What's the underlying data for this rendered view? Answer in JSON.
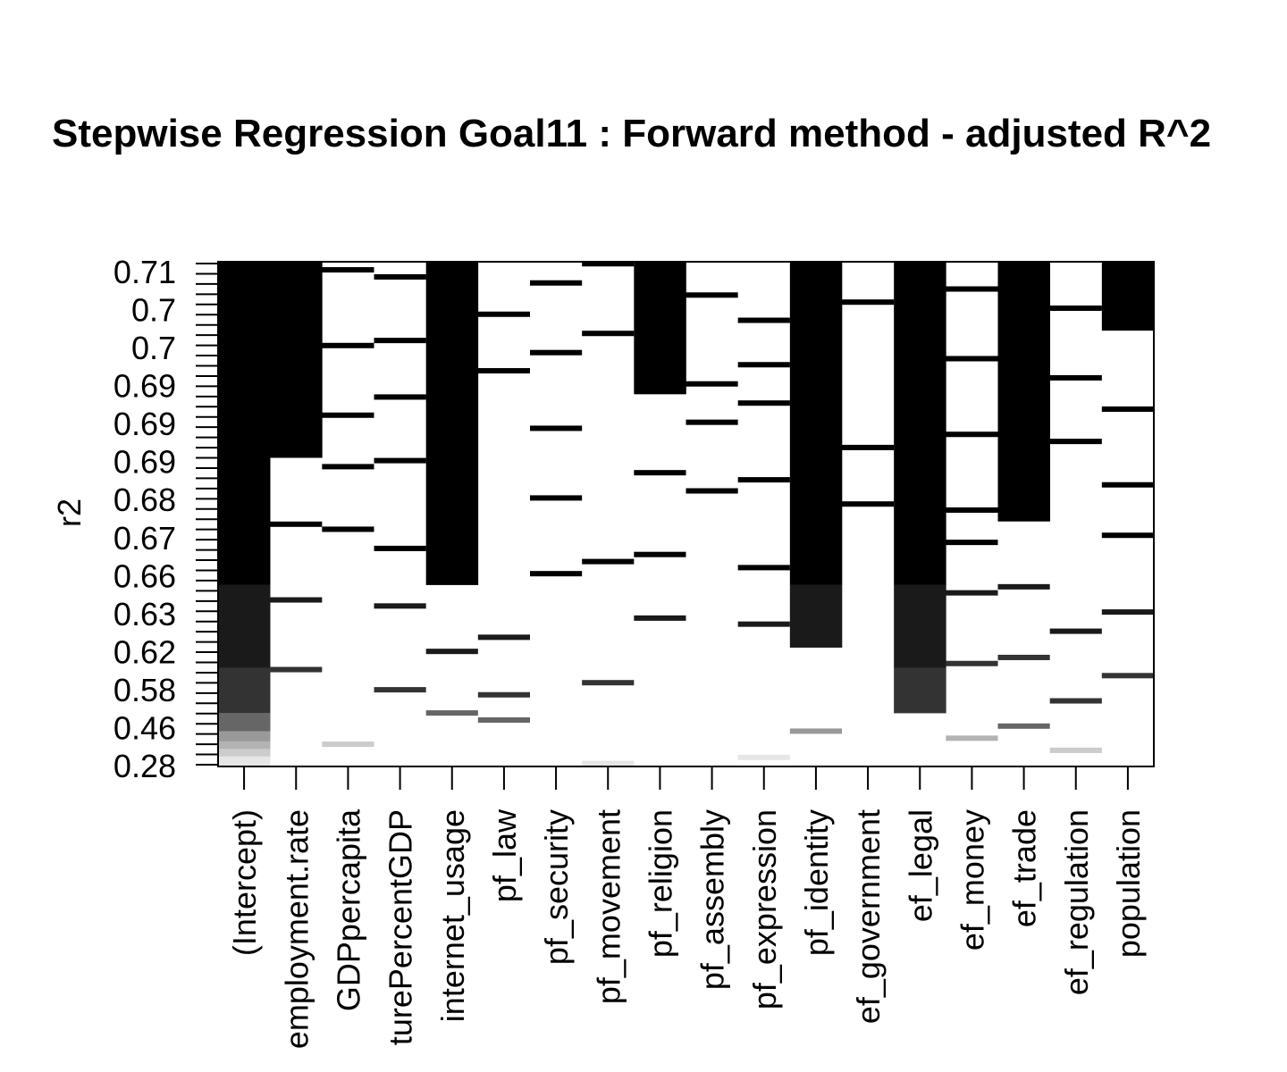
{
  "chart_data": {
    "type": "heatmap",
    "title": "Stepwise Regression Goal11 : Forward method - adjusted R^2",
    "ylabel": "r2",
    "xlabel": "",
    "y_tick_labels": [
      "0.71",
      "0.7",
      "0.7",
      "0.69",
      "0.69",
      "0.69",
      "0.68",
      "0.67",
      "0.66",
      "0.63",
      "0.62",
      "0.58",
      "0.46",
      "0.28"
    ],
    "categories": [
      "(Intercept)",
      "employment.rate",
      "GDPpercapita",
      "turePercentGDP",
      "internet_usage",
      "pf_law",
      "pf_security",
      "pf_movement",
      "pf_religion",
      "pf_assembly",
      "pf_expression",
      "pf_identity",
      "ef_government",
      "ef_legal",
      "ef_money",
      "ef_trade",
      "ef_regulation",
      "population"
    ],
    "grid": false,
    "description_of_shading": "darker cells = higher adjusted R^2 of models including the variable",
    "cells": [
      {
        "col": 0,
        "y0": 0.0,
        "y1": 0.64,
        "shade": "#000000"
      },
      {
        "col": 0,
        "y0": 0.64,
        "y1": 0.804,
        "shade": "#1a1a1a"
      },
      {
        "col": 0,
        "y0": 0.804,
        "y1": 0.894,
        "shade": "#333333"
      },
      {
        "col": 0,
        "y0": 0.894,
        "y1": 0.93,
        "shade": "#666666"
      },
      {
        "col": 0,
        "y0": 0.93,
        "y1": 0.95,
        "shade": "#999999"
      },
      {
        "col": 0,
        "y0": 0.95,
        "y1": 0.965,
        "shade": "#b3b3b3"
      },
      {
        "col": 0,
        "y0": 0.965,
        "y1": 0.98,
        "shade": "#cccccc"
      },
      {
        "col": 0,
        "y0": 0.98,
        "y1": 1.0,
        "shade": "#e6e6e6"
      },
      {
        "col": 1,
        "y0": 0.0,
        "y1": 0.388,
        "shade": "#000000"
      },
      {
        "col": 4,
        "y0": 0.0,
        "y1": 0.64,
        "shade": "#000000"
      },
      {
        "col": 8,
        "y0": 0.0,
        "y1": 0.262,
        "shade": "#000000"
      },
      {
        "col": 11,
        "y0": 0.0,
        "y1": 0.64,
        "shade": "#000000"
      },
      {
        "col": 11,
        "y0": 0.64,
        "y1": 0.764,
        "shade": "#1a1a1a"
      },
      {
        "col": 13,
        "y0": 0.0,
        "y1": 0.64,
        "shade": "#000000"
      },
      {
        "col": 13,
        "y0": 0.64,
        "y1": 0.804,
        "shade": "#1a1a1a"
      },
      {
        "col": 13,
        "y0": 0.804,
        "y1": 0.894,
        "shade": "#333333"
      },
      {
        "col": 15,
        "y0": 0.0,
        "y1": 0.514,
        "shade": "#000000"
      },
      {
        "col": 17,
        "y0": 0.0,
        "y1": 0.136,
        "shade": "#000000"
      }
    ],
    "lines": [
      {
        "col": 1,
        "y": 0.52,
        "shade": "#000000"
      },
      {
        "col": 1,
        "y": 0.67,
        "shade": "#1a1a1a"
      },
      {
        "col": 1,
        "y": 0.808,
        "shade": "#333333"
      },
      {
        "col": 2,
        "y": 0.016,
        "shade": "#000000"
      },
      {
        "col": 2,
        "y": 0.166,
        "shade": "#000000"
      },
      {
        "col": 2,
        "y": 0.304,
        "shade": "#000000"
      },
      {
        "col": 2,
        "y": 0.406,
        "shade": "#000000"
      },
      {
        "col": 2,
        "y": 0.53,
        "shade": "#000000"
      },
      {
        "col": 2,
        "y": 0.956,
        "shade": "#cccccc"
      },
      {
        "col": 3,
        "y": 0.03,
        "shade": "#000000"
      },
      {
        "col": 3,
        "y": 0.156,
        "shade": "#000000"
      },
      {
        "col": 3,
        "y": 0.268,
        "shade": "#000000"
      },
      {
        "col": 3,
        "y": 0.394,
        "shade": "#000000"
      },
      {
        "col": 3,
        "y": 0.568,
        "shade": "#000000"
      },
      {
        "col": 3,
        "y": 0.682,
        "shade": "#1a1a1a"
      },
      {
        "col": 3,
        "y": 0.848,
        "shade": "#333333"
      },
      {
        "col": 4,
        "y": 0.772,
        "shade": "#1a1a1a"
      },
      {
        "col": 4,
        "y": 0.894,
        "shade": "#666666"
      },
      {
        "col": 5,
        "y": 0.104,
        "shade": "#000000"
      },
      {
        "col": 5,
        "y": 0.216,
        "shade": "#000000"
      },
      {
        "col": 5,
        "y": 0.744,
        "shade": "#1a1a1a"
      },
      {
        "col": 5,
        "y": 0.858,
        "shade": "#333333"
      },
      {
        "col": 5,
        "y": 0.908,
        "shade": "#666666"
      },
      {
        "col": 6,
        "y": 0.042,
        "shade": "#000000"
      },
      {
        "col": 6,
        "y": 0.18,
        "shade": "#000000"
      },
      {
        "col": 6,
        "y": 0.33,
        "shade": "#000000"
      },
      {
        "col": 6,
        "y": 0.468,
        "shade": "#000000"
      },
      {
        "col": 6,
        "y": 0.618,
        "shade": "#000000"
      },
      {
        "col": 7,
        "y": 0.004,
        "shade": "#000000"
      },
      {
        "col": 7,
        "y": 0.142,
        "shade": "#000000"
      },
      {
        "col": 7,
        "y": 0.594,
        "shade": "#000000"
      },
      {
        "col": 7,
        "y": 0.834,
        "shade": "#333333"
      },
      {
        "col": 7,
        "y": 0.994,
        "shade": "#e6e6e6"
      },
      {
        "col": 8,
        "y": 0.418,
        "shade": "#000000"
      },
      {
        "col": 8,
        "y": 0.58,
        "shade": "#000000"
      },
      {
        "col": 8,
        "y": 0.706,
        "shade": "#1a1a1a"
      },
      {
        "col": 9,
        "y": 0.066,
        "shade": "#000000"
      },
      {
        "col": 9,
        "y": 0.242,
        "shade": "#000000"
      },
      {
        "col": 9,
        "y": 0.318,
        "shade": "#000000"
      },
      {
        "col": 9,
        "y": 0.454,
        "shade": "#000000"
      },
      {
        "col": 10,
        "y": 0.116,
        "shade": "#000000"
      },
      {
        "col": 10,
        "y": 0.204,
        "shade": "#000000"
      },
      {
        "col": 10,
        "y": 0.28,
        "shade": "#000000"
      },
      {
        "col": 10,
        "y": 0.432,
        "shade": "#000000"
      },
      {
        "col": 10,
        "y": 0.606,
        "shade": "#000000"
      },
      {
        "col": 10,
        "y": 0.718,
        "shade": "#1a1a1a"
      },
      {
        "col": 10,
        "y": 0.982,
        "shade": "#e6e6e6"
      },
      {
        "col": 11,
        "y": 0.93,
        "shade": "#999999"
      },
      {
        "col": 12,
        "y": 0.08,
        "shade": "#000000"
      },
      {
        "col": 12,
        "y": 0.368,
        "shade": "#000000"
      },
      {
        "col": 12,
        "y": 0.48,
        "shade": "#000000"
      },
      {
        "col": 14,
        "y": 0.054,
        "shade": "#000000"
      },
      {
        "col": 14,
        "y": 0.192,
        "shade": "#000000"
      },
      {
        "col": 14,
        "y": 0.342,
        "shade": "#000000"
      },
      {
        "col": 14,
        "y": 0.492,
        "shade": "#000000"
      },
      {
        "col": 14,
        "y": 0.556,
        "shade": "#000000"
      },
      {
        "col": 14,
        "y": 0.656,
        "shade": "#1a1a1a"
      },
      {
        "col": 14,
        "y": 0.796,
        "shade": "#333333"
      },
      {
        "col": 14,
        "y": 0.944,
        "shade": "#b3b3b3"
      },
      {
        "col": 15,
        "y": 0.644,
        "shade": "#1a1a1a"
      },
      {
        "col": 15,
        "y": 0.784,
        "shade": "#333333"
      },
      {
        "col": 15,
        "y": 0.92,
        "shade": "#666666"
      },
      {
        "col": 16,
        "y": 0.092,
        "shade": "#000000"
      },
      {
        "col": 16,
        "y": 0.23,
        "shade": "#000000"
      },
      {
        "col": 16,
        "y": 0.356,
        "shade": "#000000"
      },
      {
        "col": 16,
        "y": 0.732,
        "shade": "#1a1a1a"
      },
      {
        "col": 16,
        "y": 0.87,
        "shade": "#333333"
      },
      {
        "col": 16,
        "y": 0.968,
        "shade": "#cccccc"
      },
      {
        "col": 17,
        "y": 0.292,
        "shade": "#000000"
      },
      {
        "col": 17,
        "y": 0.442,
        "shade": "#000000"
      },
      {
        "col": 17,
        "y": 0.542,
        "shade": "#000000"
      },
      {
        "col": 17,
        "y": 0.694,
        "shade": "#1a1a1a"
      },
      {
        "col": 17,
        "y": 0.82,
        "shade": "#333333"
      }
    ]
  }
}
